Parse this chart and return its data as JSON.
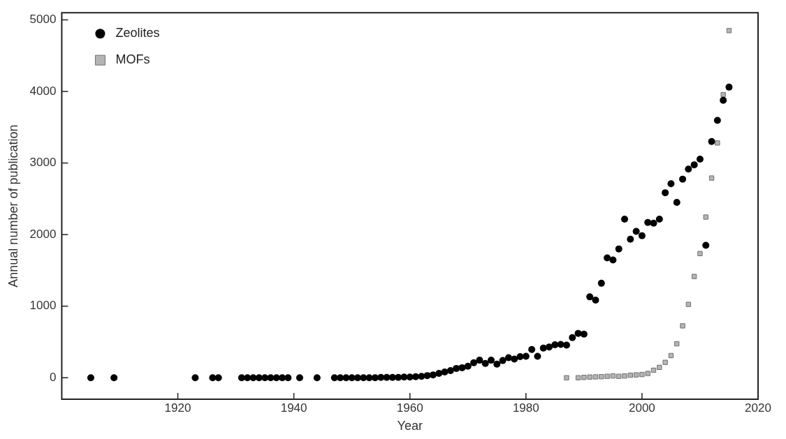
{
  "chart_data": {
    "type": "scatter",
    "xlabel": "Year",
    "ylabel": "Annual number of publication",
    "xlim": [
      1900,
      2020
    ],
    "xticks": [
      1920,
      1940,
      1960,
      1980,
      2000,
      2020
    ],
    "ylim": [
      -300,
      5100
    ],
    "yticks": [
      0,
      1000,
      2000,
      3000,
      4000,
      5000
    ],
    "grid": false,
    "legend": "top left",
    "series": [
      {
        "name": "Zeolites",
        "color": "#000000",
        "marker": "circle",
        "x": [
          1905,
          1909,
          1923,
          1926,
          1927,
          1931,
          1932,
          1933,
          1934,
          1935,
          1936,
          1937,
          1938,
          1939,
          1941,
          1944,
          1947,
          1948,
          1949,
          1950,
          1951,
          1952,
          1953,
          1954,
          1955,
          1956,
          1957,
          1958,
          1959,
          1960,
          1961,
          1962,
          1963,
          1964,
          1965,
          1966,
          1967,
          1968,
          1969,
          1970,
          1971,
          1972,
          1973,
          1974,
          1975,
          1976,
          1977,
          1978,
          1979,
          1980,
          1981,
          1982,
          1983,
          1984,
          1985,
          1986,
          1987,
          1988,
          1989,
          1990,
          1991,
          1992,
          1993,
          1994,
          1995,
          1996,
          1997,
          1998,
          1999,
          2000,
          2001,
          2002,
          2003,
          2004,
          2005,
          2006,
          2007,
          2008,
          2009,
          2010,
          2011,
          2012,
          2013,
          2014,
          2015
        ],
        "values": [
          0,
          0,
          0,
          0,
          0,
          0,
          0,
          0,
          0,
          0,
          0,
          0,
          0,
          0,
          0,
          0,
          0,
          0,
          0,
          0,
          0,
          0,
          0,
          0,
          5,
          5,
          5,
          5,
          10,
          10,
          15,
          20,
          30,
          40,
          60,
          80,
          100,
          130,
          140,
          160,
          210,
          245,
          200,
          245,
          190,
          240,
          280,
          260,
          295,
          300,
          395,
          300,
          415,
          430,
          460,
          465,
          455,
          560,
          620,
          610,
          1130,
          1085,
          1320,
          1675,
          1645,
          1800,
          2215,
          1935,
          2045,
          1985,
          2170,
          2160,
          2215,
          2585,
          2710,
          2450,
          2775,
          2915,
          2975,
          3055,
          1850,
          3300,
          3595,
          3875,
          4060
        ]
      },
      {
        "name": "MOFs",
        "color": "#b4b4b4",
        "marker": "square",
        "x": [
          1987,
          1989,
          1990,
          1991,
          1992,
          1993,
          1994,
          1995,
          1996,
          1997,
          1998,
          1999,
          2000,
          2001,
          2002,
          2003,
          2004,
          2005,
          2006,
          2007,
          2008,
          2009,
          2010,
          2011,
          2012,
          2013,
          2014,
          2015
        ],
        "values": [
          0,
          0,
          5,
          10,
          12,
          15,
          20,
          25,
          20,
          25,
          35,
          40,
          45,
          60,
          105,
          145,
          215,
          310,
          475,
          725,
          1025,
          1415,
          1735,
          2245,
          2790,
          3280,
          3955,
          4850
        ]
      }
    ]
  }
}
